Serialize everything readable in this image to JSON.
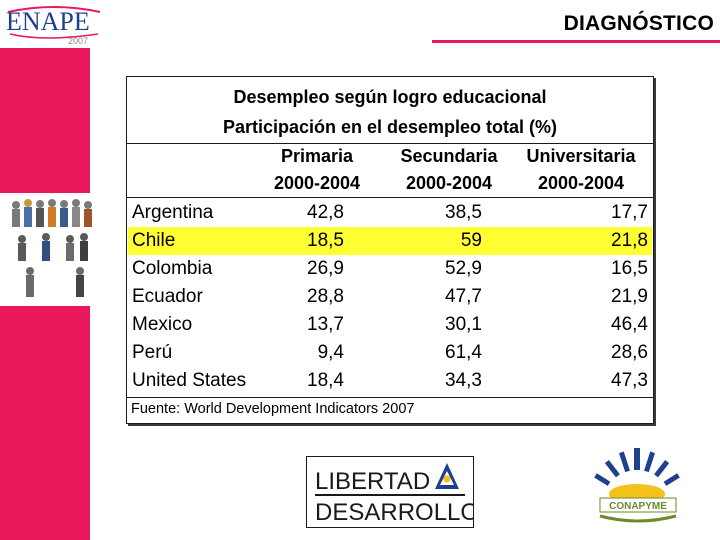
{
  "header": {
    "logo_text": "ENAPE",
    "logo_year": "2007",
    "title": "DIAGNÓSTICO"
  },
  "table": {
    "title_line1": "Desempleo según logro educacional",
    "title_line2": "Participación en el desempleo total (%)",
    "columns": [
      {
        "name": "Primaria",
        "period": "2000-2004"
      },
      {
        "name": "Secundaria",
        "period": "2000-2004"
      },
      {
        "name": "Universitaria",
        "period": "2000-2004"
      }
    ],
    "rows": [
      {
        "country": "Argentina",
        "values": [
          "42,8",
          "38,5",
          "17,7"
        ]
      },
      {
        "country": "Chile",
        "values": [
          "18,5",
          "59",
          "21,8"
        ],
        "highlighted": true
      },
      {
        "country": "Colombia",
        "values": [
          "26,9",
          "52,9",
          "16,5"
        ]
      },
      {
        "country": "Ecuador",
        "values": [
          "28,8",
          "47,7",
          "21,9"
        ]
      },
      {
        "country": "Mexico",
        "values": [
          "13,7",
          "30,1",
          "46,4"
        ]
      },
      {
        "country": "Perú",
        "values": [
          "9,4",
          "61,4",
          "28,6"
        ]
      },
      {
        "country": "United States",
        "values": [
          "18,4",
          "34,3",
          "47,3"
        ]
      }
    ],
    "source": "Fuente: World Development Indicators 2007",
    "highlight_color": "#ffff33"
  },
  "footer": {
    "libertad_line1": "LIBERTAD",
    "libertad_line2": "DESARROLLO",
    "conapyme_text": "CONAPYME"
  },
  "colors": {
    "accent_pink": "#e8185a",
    "logo_blue": "#1f3f8f",
    "logo_yellow": "#f3c21a",
    "logo_green": "#6c8a2a"
  },
  "icons": [
    "enape-logo",
    "people-figures-image",
    "libertad-desarrollo-logo",
    "conapyme-logo"
  ]
}
